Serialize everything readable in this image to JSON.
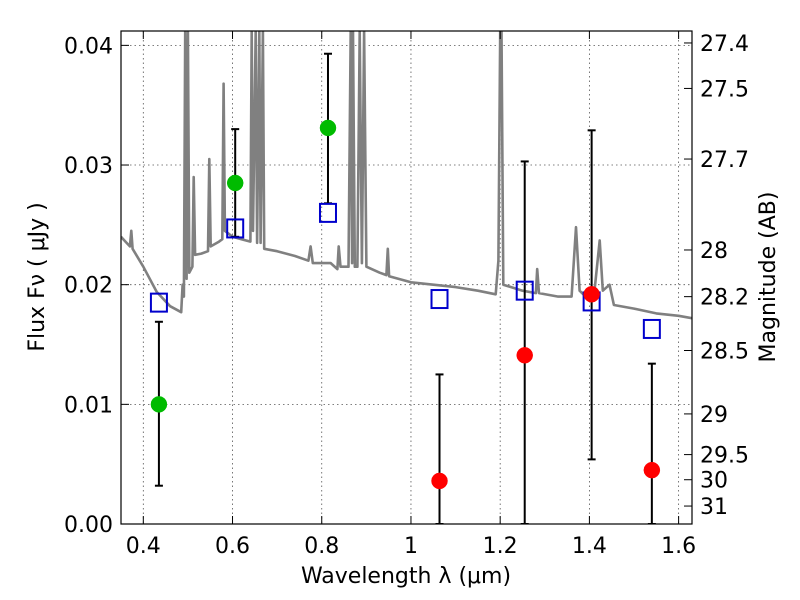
{
  "chart_data": {
    "type": "scatter",
    "xlabel": "Wavelength  λ (μm)",
    "ylabel": "Flux  Fν  ( μJy )",
    "ylabel_right": "Magnitude (AB)",
    "xlim": [
      0.35,
      1.63
    ],
    "ylim": [
      0.0,
      0.0412
    ],
    "grid": true,
    "x_ticks": [
      0.4,
      0.6,
      0.8,
      1.0,
      1.2,
      1.4,
      1.6
    ],
    "x_tick_labels": [
      "0.4",
      "0.6",
      "0.8",
      "1",
      "1.2",
      "1.4",
      "1.6"
    ],
    "y_ticks": [
      0.0,
      0.01,
      0.02,
      0.03,
      0.04
    ],
    "y_tick_labels": [
      "0.00",
      "0.01",
      "0.02",
      "0.03",
      "0.04"
    ],
    "right_ticks": [
      {
        "label": "27.4",
        "flux": 0.0402
      },
      {
        "label": "27.5",
        "flux": 0.0364
      },
      {
        "label": "27.7",
        "flux": 0.0305
      },
      {
        "label": "28",
        "flux": 0.0229
      },
      {
        "label": "28.2",
        "flux": 0.019
      },
      {
        "label": "28.5",
        "flux": 0.0145
      },
      {
        "label": "29",
        "flux": 0.0092
      },
      {
        "label": "29.5",
        "flux": 0.0058
      },
      {
        "label": "30",
        "flux": 0.0037
      },
      {
        "label": "31",
        "flux": 0.0015
      }
    ],
    "series": [
      {
        "marker": "square-open",
        "color": "#0000cc",
        "points": [
          {
            "x": 0.435,
            "y": 0.0185
          },
          {
            "x": 0.606,
            "y": 0.0247
          },
          {
            "x": 0.814,
            "y": 0.026
          },
          {
            "x": 1.064,
            "y": 0.0188
          },
          {
            "x": 1.255,
            "y": 0.0195
          },
          {
            "x": 1.405,
            "y": 0.0186
          },
          {
            "x": 1.54,
            "y": 0.0163
          }
        ]
      },
      {
        "marker": "circle",
        "color": "#00bb00",
        "points": [
          {
            "x": 0.435,
            "y": 0.01,
            "err_low": 0.0032,
            "err_high": 0.0169
          },
          {
            "x": 0.606,
            "y": 0.0285,
            "err_low": 0.024,
            "err_high": 0.033
          },
          {
            "x": 0.814,
            "y": 0.0331,
            "err_low": 0.0268,
            "err_high": 0.0393
          }
        ]
      },
      {
        "marker": "circle",
        "color": "#ff0000",
        "points": [
          {
            "x": 1.064,
            "y": 0.0036,
            "err_low": 0.0,
            "err_high": 0.0125
          },
          {
            "x": 1.255,
            "y": 0.0141,
            "err_low": 0.0,
            "err_high": 0.0303
          },
          {
            "x": 1.405,
            "y": 0.0192,
            "err_low": 0.0054,
            "err_high": 0.0329
          },
          {
            "x": 1.54,
            "y": 0.0045,
            "err_low": 0.0,
            "err_high": 0.0134
          }
        ]
      },
      {
        "marker": "line",
        "color": "#808080",
        "points": [
          {
            "x": 0.35,
            "y": 0.024
          },
          {
            "x": 0.37,
            "y": 0.0232
          },
          {
            "x": 0.373,
            "y": 0.0245
          },
          {
            "x": 0.376,
            "y": 0.023
          },
          {
            "x": 0.4,
            "y": 0.0215
          },
          {
            "x": 0.43,
            "y": 0.0194
          },
          {
            "x": 0.46,
            "y": 0.0182
          },
          {
            "x": 0.485,
            "y": 0.0177
          },
          {
            "x": 0.488,
            "y": 0.02
          },
          {
            "x": 0.491,
            "y": 0.019
          },
          {
            "x": 0.494,
            "y": 0.0412
          },
          {
            "x": 0.497,
            "y": 0.0205
          },
          {
            "x": 0.5,
            "y": 0.0412
          },
          {
            "x": 0.503,
            "y": 0.021
          },
          {
            "x": 0.51,
            "y": 0.0215
          },
          {
            "x": 0.513,
            "y": 0.029
          },
          {
            "x": 0.516,
            "y": 0.0225
          },
          {
            "x": 0.53,
            "y": 0.0226
          },
          {
            "x": 0.545,
            "y": 0.0228
          },
          {
            "x": 0.548,
            "y": 0.0305
          },
          {
            "x": 0.551,
            "y": 0.0232
          },
          {
            "x": 0.57,
            "y": 0.0236
          },
          {
            "x": 0.577,
            "y": 0.0238
          },
          {
            "x": 0.58,
            "y": 0.0368
          },
          {
            "x": 0.583,
            "y": 0.0245
          },
          {
            "x": 0.6,
            "y": 0.024
          },
          {
            "x": 0.62,
            "y": 0.0238
          },
          {
            "x": 0.64,
            "y": 0.0236
          },
          {
            "x": 0.643,
            "y": 0.0412
          },
          {
            "x": 0.646,
            "y": 0.0245
          },
          {
            "x": 0.652,
            "y": 0.0412
          },
          {
            "x": 0.655,
            "y": 0.0235
          },
          {
            "x": 0.66,
            "y": 0.0412
          },
          {
            "x": 0.663,
            "y": 0.0235
          },
          {
            "x": 0.668,
            "y": 0.0412
          },
          {
            "x": 0.671,
            "y": 0.023
          },
          {
            "x": 0.7,
            "y": 0.0228
          },
          {
            "x": 0.74,
            "y": 0.0224
          },
          {
            "x": 0.77,
            "y": 0.022
          },
          {
            "x": 0.775,
            "y": 0.0232
          },
          {
            "x": 0.78,
            "y": 0.0218
          },
          {
            "x": 0.82,
            "y": 0.0218
          },
          {
            "x": 0.835,
            "y": 0.0213
          },
          {
            "x": 0.838,
            "y": 0.0232
          },
          {
            "x": 0.842,
            "y": 0.0215
          },
          {
            "x": 0.86,
            "y": 0.0215
          },
          {
            "x": 0.865,
            "y": 0.0412
          },
          {
            "x": 0.868,
            "y": 0.0218
          },
          {
            "x": 0.87,
            "y": 0.0412
          },
          {
            "x": 0.874,
            "y": 0.0215
          },
          {
            "x": 0.88,
            "y": 0.0215
          },
          {
            "x": 0.885,
            "y": 0.0412
          },
          {
            "x": 0.89,
            "y": 0.0218
          },
          {
            "x": 0.895,
            "y": 0.0412
          },
          {
            "x": 0.9,
            "y": 0.0215
          },
          {
            "x": 0.93,
            "y": 0.021
          },
          {
            "x": 0.945,
            "y": 0.0208
          },
          {
            "x": 0.948,
            "y": 0.023
          },
          {
            "x": 0.951,
            "y": 0.0207
          },
          {
            "x": 1.0,
            "y": 0.0202
          },
          {
            "x": 1.05,
            "y": 0.02
          },
          {
            "x": 1.1,
            "y": 0.0198
          },
          {
            "x": 1.15,
            "y": 0.0195
          },
          {
            "x": 1.19,
            "y": 0.0192
          },
          {
            "x": 1.196,
            "y": 0.022
          },
          {
            "x": 1.2,
            "y": 0.0412
          },
          {
            "x": 1.203,
            "y": 0.0412
          },
          {
            "x": 1.207,
            "y": 0.02
          },
          {
            "x": 1.25,
            "y": 0.0195
          },
          {
            "x": 1.28,
            "y": 0.0193
          },
          {
            "x": 1.283,
            "y": 0.0213
          },
          {
            "x": 1.287,
            "y": 0.0193
          },
          {
            "x": 1.33,
            "y": 0.019
          },
          {
            "x": 1.36,
            "y": 0.019
          },
          {
            "x": 1.37,
            "y": 0.0248
          },
          {
            "x": 1.378,
            "y": 0.0195
          },
          {
            "x": 1.4,
            "y": 0.0187
          },
          {
            "x": 1.41,
            "y": 0.019
          },
          {
            "x": 1.423,
            "y": 0.0237
          },
          {
            "x": 1.43,
            "y": 0.0195
          },
          {
            "x": 1.445,
            "y": 0.02
          },
          {
            "x": 1.455,
            "y": 0.0183
          },
          {
            "x": 1.5,
            "y": 0.018
          },
          {
            "x": 1.55,
            "y": 0.0176
          },
          {
            "x": 1.6,
            "y": 0.0174
          },
          {
            "x": 1.63,
            "y": 0.0172
          }
        ]
      }
    ]
  }
}
